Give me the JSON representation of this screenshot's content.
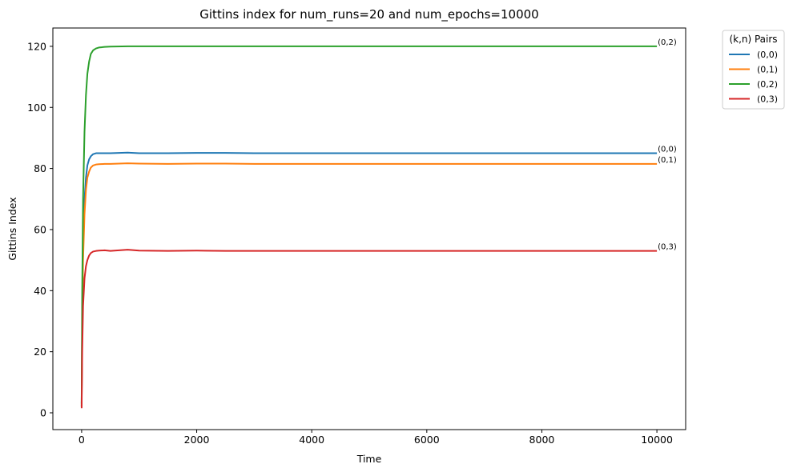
{
  "chart_data": {
    "type": "line",
    "title": "Gittins index for num_runs=20 and num_epochs=10000",
    "xlabel": "Time",
    "ylabel": "Gittins Index",
    "xlim": [
      -500,
      10500
    ],
    "ylim": [
      -5.5,
      126
    ],
    "xticks": [
      0,
      2000,
      4000,
      6000,
      8000,
      10000
    ],
    "yticks": [
      0,
      20,
      40,
      60,
      80,
      100,
      120
    ],
    "grid": false,
    "legend": {
      "title": "(k,n) Pairs",
      "placement": "outside-top-right"
    },
    "series": [
      {
        "name": "(0,0)",
        "color": "#1f77b4",
        "end_label": "(0,0)",
        "x": [
          0,
          10,
          25,
          50,
          75,
          100,
          130,
          160,
          200,
          250,
          300,
          400,
          500,
          800,
          1000,
          1500,
          2000,
          2500,
          3000,
          4000,
          5000,
          6000,
          7000,
          8000,
          9000,
          10000
        ],
        "y": [
          2,
          30,
          55,
          70,
          77,
          81,
          83,
          84,
          84.7,
          85,
          85,
          85,
          85,
          85.2,
          85,
          85,
          85.1,
          85.1,
          85,
          85,
          85,
          85,
          85,
          85,
          85,
          85
        ]
      },
      {
        "name": "(0,1)",
        "color": "#ff7f0e",
        "end_label": "(0,1)",
        "x": [
          0,
          10,
          25,
          50,
          75,
          100,
          130,
          160,
          200,
          250,
          300,
          400,
          500,
          800,
          1000,
          1500,
          2000,
          2500,
          3000,
          4000,
          5000,
          6000,
          7000,
          8000,
          9000,
          10000
        ],
        "y": [
          2,
          28,
          50,
          65,
          73,
          77,
          79,
          80.3,
          81,
          81.3,
          81.4,
          81.5,
          81.5,
          81.7,
          81.6,
          81.5,
          81.6,
          81.6,
          81.5,
          81.5,
          81.5,
          81.5,
          81.5,
          81.5,
          81.5,
          81.5
        ]
      },
      {
        "name": "(0,2)",
        "color": "#2ca02c",
        "end_label": "(0,2)",
        "x": [
          0,
          10,
          25,
          50,
          75,
          100,
          130,
          160,
          200,
          250,
          300,
          400,
          500,
          800,
          1000,
          1500,
          2000,
          2500,
          3000,
          4000,
          5000,
          6000,
          7000,
          8000,
          9000,
          10000
        ],
        "y": [
          3,
          40,
          70,
          92,
          104,
          111,
          115,
          117.5,
          118.7,
          119.3,
          119.6,
          119.8,
          119.9,
          120,
          120,
          120,
          120,
          120,
          120,
          120,
          120,
          120,
          120,
          120,
          120,
          120
        ]
      },
      {
        "name": "(0,3)",
        "color": "#d62728",
        "end_label": "(0,3)",
        "x": [
          0,
          10,
          25,
          50,
          75,
          100,
          130,
          160,
          200,
          250,
          300,
          400,
          500,
          800,
          1000,
          1500,
          2000,
          2500,
          3000,
          4000,
          5000,
          6000,
          7000,
          8000,
          9000,
          10000
        ],
        "y": [
          1.5,
          20,
          35,
          44,
          48,
          50,
          51.5,
          52.3,
          52.8,
          53,
          53.1,
          53.2,
          53,
          53.4,
          53.1,
          53,
          53.1,
          53,
          53,
          53,
          53,
          53,
          53,
          53,
          53,
          53
        ]
      }
    ]
  }
}
